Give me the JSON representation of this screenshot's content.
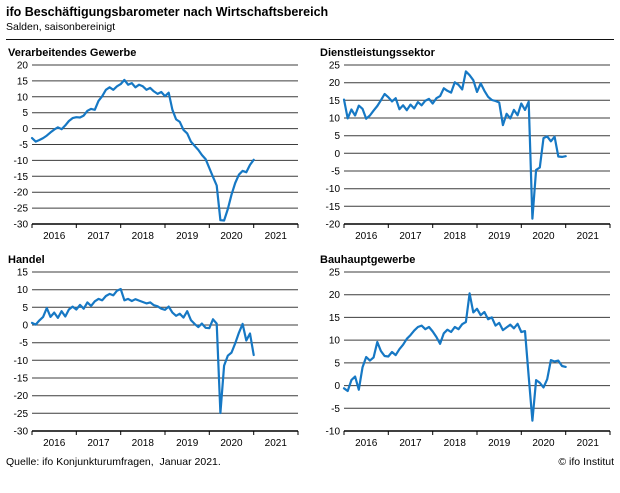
{
  "header": {
    "title": "ifo Beschäftigungsbarometer nach Wirtschaftsbereich",
    "subtitle": "Salden, saisonbereinigt"
  },
  "footer": {
    "source": "Quelle: ifo Konjunkturumfragen,  Januar 2021.",
    "copyright": "© ifo Institut"
  },
  "colors": {
    "line": "#1678c4",
    "grid": "#3d3d3d",
    "axis": "#000000"
  },
  "chart_data": [
    {
      "type": "line",
      "title": "Verarbeitendes Gewerbe",
      "x_unit": "month",
      "x_start": "2016-01",
      "x_end": "2021-01",
      "xlim": [
        2016,
        2022
      ],
      "x_labels": [
        "2016",
        "2017",
        "2018",
        "2019",
        "2020",
        "2021"
      ],
      "ylim": [
        -30,
        20
      ],
      "y_step": 5,
      "grid": true,
      "values": [
        -3.0,
        -4.1,
        -3.6,
        -3.0,
        -2.2,
        -1.2,
        -0.3,
        0.4,
        -0.2,
        1.0,
        2.4,
        3.3,
        3.6,
        3.5,
        4.1,
        5.6,
        6.2,
        5.9,
        8.7,
        10.2,
        12.2,
        13.0,
        12.2,
        13.3,
        14.0,
        15.3,
        13.8,
        14.3,
        13.0,
        13.8,
        13.3,
        12.2,
        12.8,
        11.7,
        10.9,
        11.5,
        10.2,
        11.3,
        5.9,
        2.9,
        2.1,
        -0.4,
        -1.5,
        -4.1,
        -5.4,
        -6.7,
        -8.3,
        -9.6,
        -12.4,
        -15.2,
        -17.9,
        -28.8,
        -28.9,
        -25.3,
        -20.8,
        -17.1,
        -14.5,
        -13.3,
        -13.7,
        -11.4,
        -9.8
      ]
    },
    {
      "type": "line",
      "title": "Dienstleistungssektor",
      "x_unit": "month",
      "x_start": "2016-01",
      "x_end": "2021-01",
      "xlim": [
        2016,
        2022
      ],
      "x_labels": [
        "2016",
        "2017",
        "2018",
        "2019",
        "2020",
        "2021"
      ],
      "ylim": [
        -20,
        25
      ],
      "y_step": 5,
      "grid": true,
      "values": [
        15.2,
        9.9,
        12.4,
        10.7,
        13.5,
        12.6,
        9.8,
        10.7,
        12.1,
        13.4,
        15.0,
        16.8,
        15.9,
        14.7,
        15.6,
        12.5,
        13.6,
        12.2,
        13.8,
        12.7,
        14.5,
        13.6,
        14.9,
        15.4,
        14.1,
        15.6,
        16.2,
        18.4,
        17.7,
        17.2,
        20.1,
        19.4,
        18.1,
        23.2,
        22.1,
        20.7,
        17.4,
        19.8,
        17.7,
        16.0,
        15.1,
        14.8,
        14.4,
        8.0,
        11.2,
        9.9,
        12.3,
        10.8,
        14.1,
        12.3,
        14.6,
        -18.5,
        -4.7,
        -4.0,
        4.3,
        4.8,
        3.4,
        4.7,
        -0.9,
        -1.0,
        -0.8
      ]
    },
    {
      "type": "line",
      "title": "Handel",
      "x_unit": "month",
      "x_start": "2016-01",
      "x_end": "2021-01",
      "xlim": [
        2016,
        2022
      ],
      "x_labels": [
        "2016",
        "2017",
        "2018",
        "2019",
        "2020",
        "2021"
      ],
      "ylim": [
        -30,
        15
      ],
      "y_step": 5,
      "grid": true,
      "values": [
        0.6,
        0.1,
        1.3,
        2.3,
        4.8,
        2.3,
        3.5,
        2.0,
        3.9,
        2.4,
        4.4,
        5.2,
        4.4,
        5.7,
        4.6,
        6.4,
        5.4,
        6.7,
        7.4,
        7.0,
        8.2,
        8.8,
        8.4,
        9.7,
        10.2,
        7.0,
        7.4,
        6.8,
        7.3,
        6.9,
        6.5,
        6.1,
        6.4,
        5.6,
        5.3,
        4.6,
        4.3,
        5.2,
        3.5,
        2.6,
        3.2,
        2.1,
        3.9,
        1.4,
        0.3,
        -0.6,
        0.4,
        -0.8,
        -0.9,
        1.6,
        0.4,
        -24.9,
        -11.5,
        -8.7,
        -7.8,
        -5.2,
        -2.2,
        0.3,
        -4.4,
        -2.4,
        -8.5
      ]
    },
    {
      "type": "line",
      "title": "Bauhauptgewerbe",
      "x_unit": "month",
      "x_start": "2016-01",
      "x_end": "2021-01",
      "xlim": [
        2016,
        2022
      ],
      "x_labels": [
        "2016",
        "2017",
        "2018",
        "2019",
        "2020",
        "2021"
      ],
      "ylim": [
        -10,
        25
      ],
      "y_step": 5,
      "grid": true,
      "values": [
        -0.6,
        -1.2,
        1.2,
        2.0,
        -0.9,
        4.0,
        6.3,
        5.5,
        6.2,
        9.6,
        7.6,
        6.5,
        6.4,
        7.4,
        6.7,
        8.0,
        9.0,
        10.3,
        11.1,
        12.1,
        12.9,
        13.2,
        12.4,
        12.9,
        11.9,
        10.7,
        9.2,
        11.5,
        12.3,
        11.8,
        12.9,
        12.4,
        13.5,
        14.0,
        20.3,
        16.1,
        16.9,
        15.5,
        16.2,
        14.6,
        15.0,
        13.2,
        13.8,
        12.2,
        12.8,
        13.4,
        12.6,
        13.6,
        11.8,
        12.0,
        2.0,
        -7.7,
        1.2,
        0.6,
        -0.4,
        1.4,
        5.6,
        5.3,
        5.5,
        4.3,
        4.1
      ]
    }
  ]
}
